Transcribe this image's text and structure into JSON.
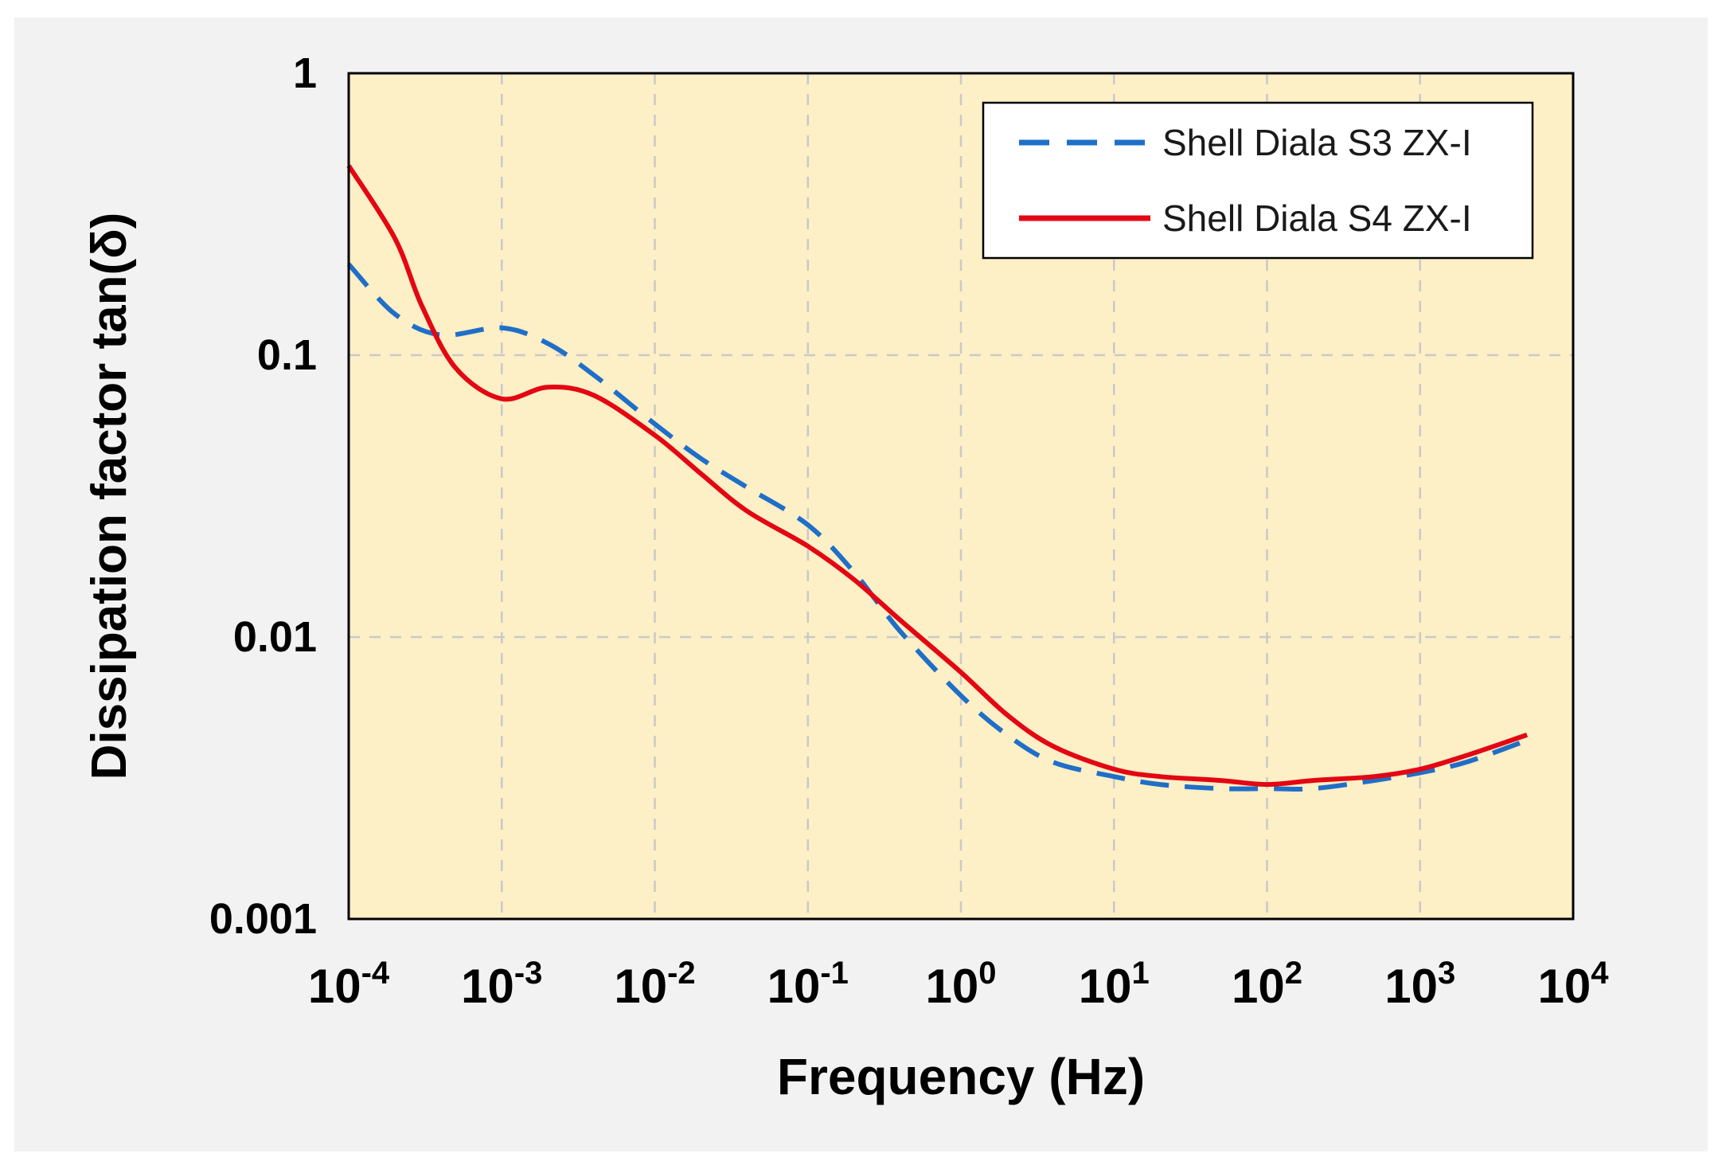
{
  "chart_data": {
    "type": "line",
    "title": "",
    "xlabel": "Frequency (Hz)",
    "ylabel": "Dissipation factor tan(δ)",
    "xscale": "log",
    "yscale": "log",
    "xlim": [
      0.0001,
      10000
    ],
    "ylim": [
      0.001,
      1
    ],
    "grid": true,
    "legend_position": "top-right",
    "background_color": "#fdefc6",
    "x_ticks": [
      {
        "base": "10",
        "exp": "-4"
      },
      {
        "base": "10",
        "exp": "-3"
      },
      {
        "base": "10",
        "exp": "-2"
      },
      {
        "base": "10",
        "exp": "-1"
      },
      {
        "base": "10",
        "exp": "0"
      },
      {
        "base": "10",
        "exp": "1"
      },
      {
        "base": "10",
        "exp": "2"
      },
      {
        "base": "10",
        "exp": "3"
      },
      {
        "base": "10",
        "exp": "4"
      }
    ],
    "y_ticks": [
      "0.001",
      "0.01",
      "0.1",
      "1"
    ],
    "series": [
      {
        "name": "Shell Diala S3 ZX-I",
        "color": "#1f6fc8",
        "style": "dashed",
        "x": [
          0.0001,
          0.0002,
          0.0004,
          0.001,
          0.002,
          0.004,
          0.01,
          0.02,
          0.04,
          0.1,
          0.2,
          0.4,
          1,
          2,
          4,
          10,
          20,
          50,
          100,
          200,
          500,
          1000,
          2000,
          5000
        ],
        "y": [
          0.21,
          0.14,
          0.118,
          0.125,
          0.11,
          0.085,
          0.057,
          0.043,
          0.034,
          0.025,
          0.017,
          0.0105,
          0.0062,
          0.0045,
          0.0036,
          0.0032,
          0.003,
          0.0029,
          0.0029,
          0.0029,
          0.0031,
          0.0033,
          0.0036,
          0.0043
        ]
      },
      {
        "name": "Shell Diala S4 ZX-I",
        "color": "#e30613",
        "style": "solid",
        "x": [
          0.0001,
          0.0002,
          0.0003,
          0.0005,
          0.001,
          0.002,
          0.004,
          0.01,
          0.02,
          0.04,
          0.1,
          0.2,
          0.4,
          1,
          2,
          4,
          10,
          20,
          50,
          100,
          200,
          500,
          1000,
          2000,
          5000
        ],
        "y": [
          0.47,
          0.26,
          0.15,
          0.09,
          0.07,
          0.077,
          0.072,
          0.052,
          0.038,
          0.028,
          0.021,
          0.016,
          0.0115,
          0.0075,
          0.0053,
          0.0041,
          0.0034,
          0.0032,
          0.0031,
          0.003,
          0.0031,
          0.0032,
          0.0034,
          0.0038,
          0.0045
        ]
      }
    ]
  }
}
